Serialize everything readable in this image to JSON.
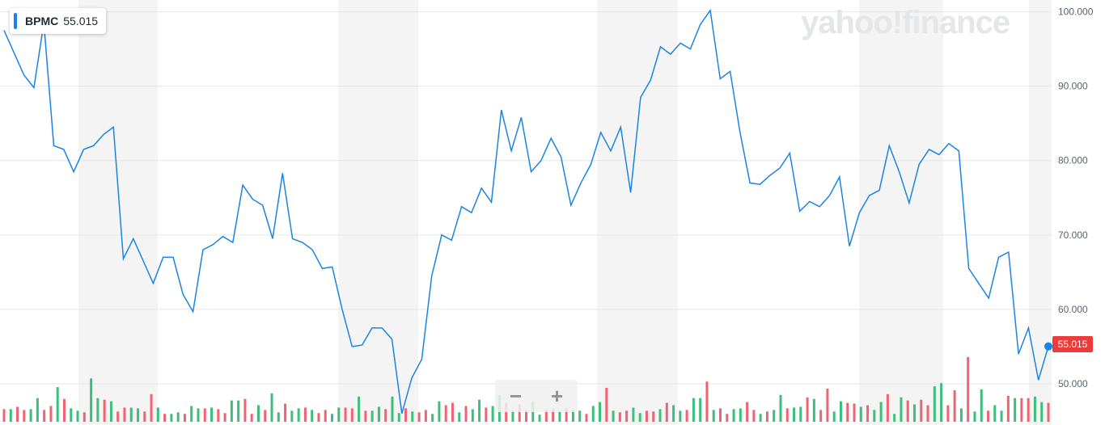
{
  "badge": {
    "symbol": "BPMC",
    "value": "55.015"
  },
  "watermark": "yahoo!finance",
  "zoom": {
    "out_label": "−",
    "in_label": "+"
  },
  "last_price_label": "55.015",
  "colors": {
    "line": "#1a84e3",
    "up": "#3cbf7c",
    "down": "#f06373",
    "band": "#f4f4f4",
    "grid": "#e6e6e6",
    "tag": "#ec3b3b"
  },
  "chart_data": {
    "type": "line",
    "ylim": [
      45,
      100.5
    ],
    "yticks": [
      "100.000",
      "90.000",
      "80.000",
      "70.000",
      "60.000",
      "50.000"
    ],
    "ytick_values": [
      100,
      90,
      80,
      70,
      60,
      50
    ],
    "series": [
      {
        "values": [
          97.5,
          94.5,
          91.5,
          89.8,
          98.5,
          82.0,
          81.5,
          78.5,
          81.5,
          82.0,
          83.5,
          84.5,
          66.8,
          69.5,
          66.5,
          63.5,
          67.0,
          67.0,
          62.0,
          59.7,
          68.0,
          68.7,
          69.8,
          69.0,
          76.7,
          74.8,
          74.0,
          69.5,
          78.3,
          69.5,
          69.0,
          68.0,
          65.5,
          65.7,
          60.0,
          55.0,
          55.2,
          57.5,
          57.5,
          56.0,
          46.0,
          50.8,
          53.3,
          64.5,
          70.0,
          69.3,
          73.8,
          73.0,
          76.3,
          74.4,
          86.8,
          81.3,
          85.8,
          78.5,
          80.0,
          83.0,
          80.5,
          74.0,
          77.0,
          79.5,
          83.8,
          81.3,
          84.5,
          75.7,
          88.5,
          90.8,
          95.3,
          94.3,
          95.8,
          95.0,
          98.3,
          100.2,
          91.0,
          92.0,
          83.8,
          77.0,
          76.8,
          78.0,
          79.0,
          81.0,
          73.2,
          74.5,
          73.8,
          75.3,
          77.8,
          68.5,
          73.0,
          75.3,
          76.0,
          82.0,
          78.5,
          74.3,
          79.5,
          81.5,
          80.8,
          82.3,
          81.3,
          65.5,
          63.5,
          61.5,
          67.0,
          67.7,
          54.0,
          57.5,
          50.5,
          55.015
        ]
      }
    ],
    "volume": [
      16,
      16,
      19,
      15,
      16,
      30,
      15,
      20,
      44,
      29,
      17,
      14,
      12,
      55,
      30,
      28,
      26,
      13,
      18,
      18,
      17,
      13,
      35,
      18,
      10,
      10,
      12,
      10,
      20,
      17,
      17,
      18,
      16,
      11,
      27,
      27,
      29,
      10,
      21,
      15,
      36,
      12,
      23,
      14,
      17,
      18,
      15,
      11,
      15,
      10,
      18,
      18,
      17,
      32,
      14,
      14,
      19,
      16,
      32,
      11,
      17,
      13,
      12,
      15,
      10,
      26,
      21,
      24,
      12,
      20,
      16,
      28,
      18,
      20,
      34,
      24,
      14,
      22,
      15,
      26,
      9,
      16,
      17,
      13,
      17,
      15,
      14,
      10,
      20,
      25,
      43,
      14,
      12,
      14,
      18,
      11,
      14,
      13,
      16,
      24,
      21,
      14,
      15,
      30,
      30,
      51,
      15,
      17,
      10,
      16,
      17,
      25,
      15,
      10,
      13,
      15,
      34,
      17,
      18,
      19,
      31,
      29,
      15,
      42,
      13,
      26,
      24,
      23,
      19,
      21,
      15,
      25,
      35,
      10,
      31,
      27,
      22,
      28,
      21,
      45,
      49,
      21,
      40,
      17,
      82,
      13,
      41,
      14,
      21,
      14,
      33,
      30,
      30,
      30,
      32,
      25,
      24
    ]
  }
}
